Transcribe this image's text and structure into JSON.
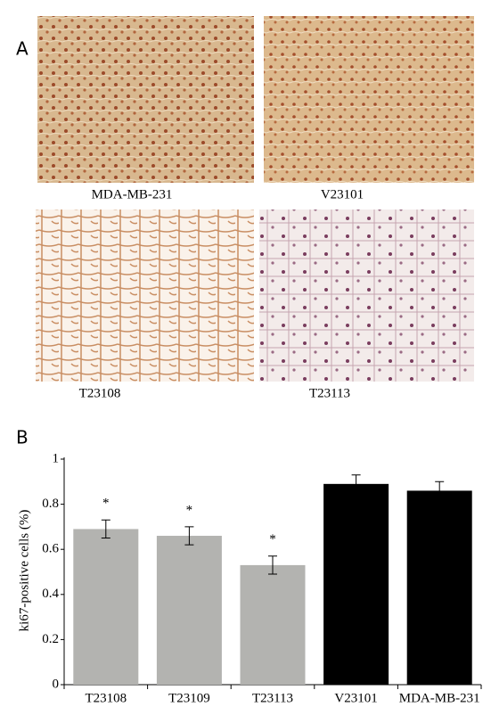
{
  "panel_a": {
    "label": "A",
    "captions": [
      "MDA-MB-231",
      "V23101",
      "T23108",
      "T23113"
    ]
  },
  "panel_b": {
    "label": "B"
  },
  "chart_data": {
    "type": "bar",
    "y_label": "ki67-positive cells (%)",
    "categories": [
      "T23108",
      "T23109",
      "T23113",
      "V23101",
      "MDA-MB-231"
    ],
    "values": [
      0.69,
      0.66,
      0.53,
      0.89,
      0.86
    ],
    "errors": [
      0.04,
      0.04,
      0.04,
      0.04,
      0.04
    ],
    "markers": [
      "*",
      "*",
      "*",
      null,
      null
    ],
    "colors": [
      "#b3b3b0",
      "#b3b3b0",
      "#b3b3b0",
      "#000000",
      "#000000"
    ],
    "ylim": [
      0,
      1
    ],
    "yticks": [
      0,
      0.2,
      0.4,
      0.6,
      0.8,
      1
    ]
  }
}
